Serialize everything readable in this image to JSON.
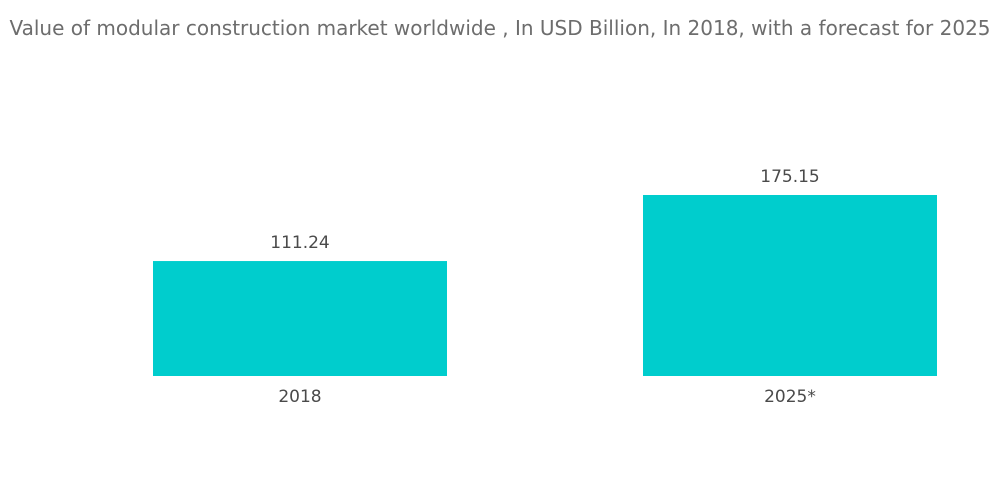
{
  "chart_data": {
    "type": "bar",
    "title": "Value of modular construction market worldwide , In USD Billion, In 2018, with a forecast for 2025",
    "categories": [
      "2018",
      "2025*"
    ],
    "values": [
      111.24,
      175.15
    ],
    "value_labels": [
      "111.24",
      "175.15"
    ],
    "xlabel": "",
    "ylabel": "",
    "ylim": [
      0,
      200
    ],
    "grid": false,
    "legend": "none",
    "bar_color": "#00cdcd"
  }
}
